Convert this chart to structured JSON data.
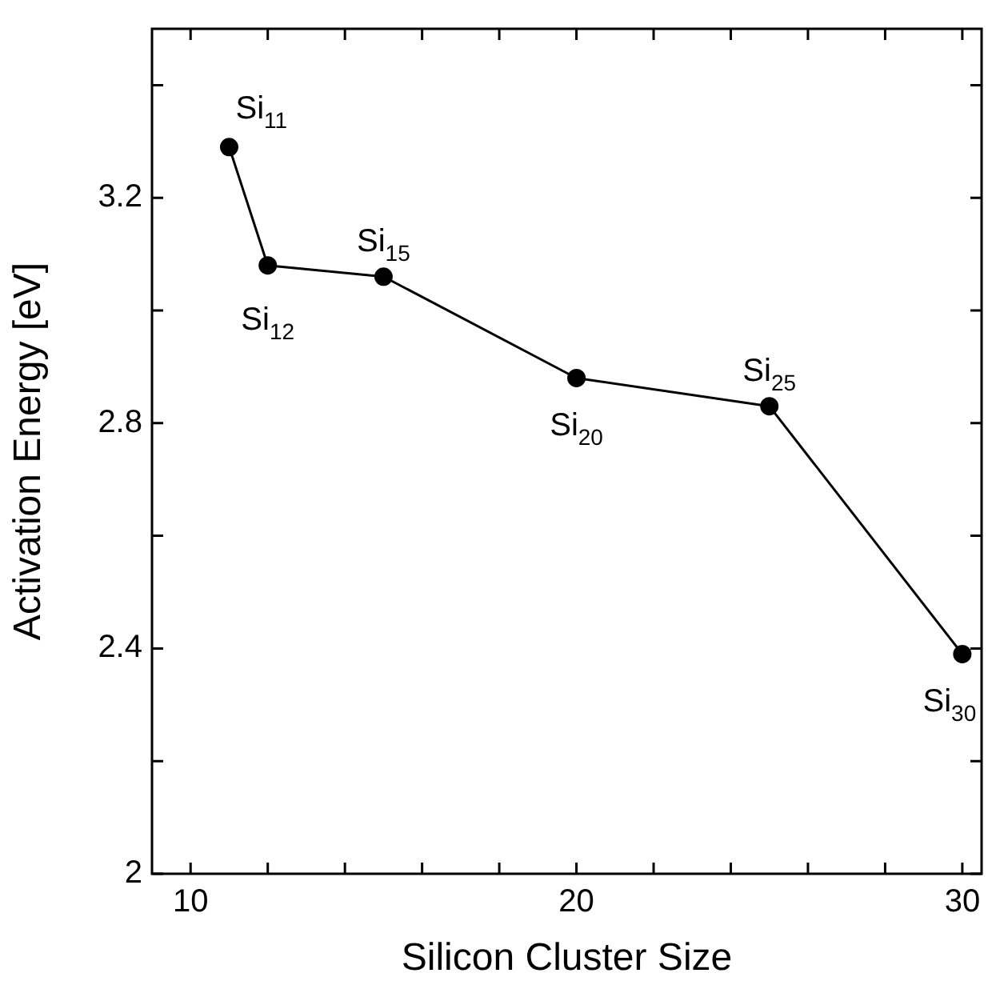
{
  "chart_data": {
    "type": "line",
    "xlabel": "Silicon Cluster Size",
    "ylabel": "Activation Energy [eV]",
    "x": [
      11,
      12,
      15,
      20,
      25,
      30
    ],
    "series": [
      {
        "color": "#000000",
        "values": [
          3.29,
          3.08,
          3.06,
          2.88,
          2.83,
          2.39
        ]
      }
    ],
    "marker": "circle",
    "line_style": "solid",
    "grid": false,
    "legend": false,
    "xlim": [
      9,
      30.5
    ],
    "xticks": [
      10,
      {
        "value": 12,
        "label": null
      },
      {
        "value": 14,
        "label": null
      },
      {
        "value": 16,
        "label": null
      },
      {
        "value": 18,
        "label": null
      },
      20,
      {
        "value": 22,
        "label": null
      },
      {
        "value": 24,
        "label": null
      },
      {
        "value": 26,
        "label": null
      },
      {
        "value": 28,
        "label": null
      },
      30
    ],
    "ylim": [
      2,
      3.5
    ],
    "yticks": [
      2,
      {
        "value": 2.2,
        "label": null
      },
      2.4,
      {
        "value": 2.6,
        "label": null
      },
      2.8,
      {
        "value": 3.0,
        "label": null
      },
      3.2,
      {
        "value": 3.4,
        "label": null
      }
    ],
    "annotations": [
      {
        "text": "Si$_{11}$",
        "x": 11,
        "y": 3.29
      },
      {
        "text": "Si$_{12}$",
        "x": 12,
        "y": 3.08
      },
      {
        "text": "Si$_{15}$",
        "x": 15,
        "y": 3.06
      },
      {
        "text": "Si$_{20}$",
        "x": 20,
        "y": 2.88
      },
      {
        "text": "Si$_{25}$",
        "x": 25,
        "y": 2.83
      },
      {
        "text": "Si$_{30}$",
        "x": 30,
        "y": 2.39
      }
    ]
  }
}
